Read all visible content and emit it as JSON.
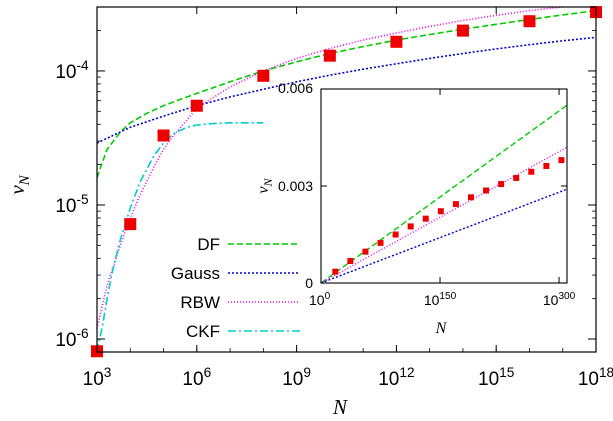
{
  "chart_data": [
    {
      "type": "line",
      "name": "main",
      "xlabel": "N",
      "ylabel": "ν",
      "ylabel_sub": "N",
      "xscale": "log",
      "yscale": "log",
      "xlim": [
        1000.0,
        1e+18
      ],
      "ylim": [
        8e-07,
        0.0003
      ],
      "xticks": [
        {
          "exp": 3,
          "label_base": "10",
          "label_exp": "3"
        },
        {
          "exp": 6,
          "label_base": "10",
          "label_exp": "6"
        },
        {
          "exp": 9,
          "label_base": "10",
          "label_exp": "9"
        },
        {
          "exp": 12,
          "label_base": "10",
          "label_exp": "12"
        },
        {
          "exp": 15,
          "label_base": "10",
          "label_exp": "15"
        },
        {
          "exp": 18,
          "label_base": "10",
          "label_exp": "18"
        }
      ],
      "yticks": [
        {
          "exp": -6,
          "label_base": "10",
          "label_exp": "-6"
        },
        {
          "exp": -5,
          "label_base": "10",
          "label_exp": "-5"
        },
        {
          "exp": -4,
          "label_base": "10",
          "label_exp": "-4"
        }
      ],
      "legend_position": "bottom-left",
      "series": [
        {
          "name": "DF",
          "color": "#00cc00",
          "dash": "6,3",
          "x": [
            1000.0,
            2000.0,
            5000.0,
            10000.0,
            30000.0,
            100000.0,
            300000.0,
            1000000.0,
            10000000.0,
            100000000.0,
            1000000000.0,
            10000000000.0,
            100000000000.0,
            1000000000000.0,
            10000000000000.0,
            100000000000000.0,
            1000000000000000.0,
            1e+16,
            1e+17,
            1e+18
          ],
          "y": [
            1.6e-05,
            2.6e-05,
            3.5e-05,
            4.1e-05,
            4.8e-05,
            5.5e-05,
            6.1e-05,
            6.8e-05,
            8.3e-05,
            0.0001,
            0.000117,
            0.000135,
            0.000152,
            0.00017,
            0.000187,
            0.000205,
            0.000223,
            0.000242,
            0.000262,
            0.000282
          ]
        },
        {
          "name": "Gauss",
          "color": "#0000cc",
          "dash": "2,2",
          "x": [
            1000.0,
            10000.0,
            100000.0,
            1000000.0,
            10000000.0,
            100000000.0,
            1000000000.0,
            10000000000.0,
            100000000000.0,
            1000000000000.0,
            10000000000000.0,
            100000000000000.0,
            1000000000000000.0,
            1e+16,
            1e+17,
            1e+18
          ],
          "y": [
            2.9e-05,
            3.8e-05,
            4.6e-05,
            5.5e-05,
            6.4e-05,
            7.3e-05,
            8.3e-05,
            9.3e-05,
            0.000103,
            0.000113,
            0.000124,
            0.000135,
            0.000146,
            0.000157,
            0.000168,
            0.000178
          ]
        },
        {
          "name": "RBW",
          "color": "#ee00ee",
          "dash": "1,2",
          "x": [
            1000.0,
            2000.0,
            5000.0,
            10000.0,
            20000.0,
            50000.0,
            100000.0,
            200000.0,
            500000.0,
            1000000.0,
            10000000.0,
            100000000.0,
            1000000000.0,
            10000000000.0,
            100000000000.0,
            1000000000000.0,
            10000000000000.0,
            100000000000000.0,
            1000000000000000.0,
            1e+16,
            1e+17
          ],
          "y": [
            1.2e-06,
            2.5e-06,
            5e-06,
            8e-06,
            1.2e-05,
            1.9e-05,
            2.6e-05,
            3.3e-05,
            4.3e-05,
            5.3e-05,
            7.6e-05,
            0.0001,
            0.000124,
            0.000147,
            0.00017,
            0.000192,
            0.000215,
            0.000238,
            0.00026,
            0.000282,
            0.0003
          ]
        },
        {
          "name": "CKF",
          "color": "#00cccc",
          "dash": "8,3,2,3",
          "x": [
            1000.0,
            1500.0,
            2000.0,
            3000.0,
            5000.0,
            10000.0,
            20000.0,
            50000.0,
            100000.0,
            200000.0,
            500000.0,
            1000000.0,
            3000000.0,
            10000000.0,
            100000000.0
          ],
          "y": [
            8e-07,
            1.3e-06,
            2e-06,
            3.3e-06,
            5.5e-06,
            9.5e-06,
            1.5e-05,
            2.3e-05,
            2.9e-05,
            3.4e-05,
            3.8e-05,
            3.95e-05,
            4.05e-05,
            4.1e-05,
            4.1e-05
          ]
        }
      ],
      "markers": {
        "name": "",
        "color": "#ee0000",
        "x": [
          1000.0,
          10000.0,
          100000.0,
          1000000.0,
          100000000.0,
          10000000000.0,
          1000000000000.0,
          100000000000000.0,
          1e+16,
          1e+18
        ],
        "y": [
          8.1e-07,
          7.2e-06,
          3.3e-05,
          5.5e-05,
          9.2e-05,
          0.00013,
          0.000165,
          0.0002,
          0.000235,
          0.000275
        ]
      }
    },
    {
      "type": "line",
      "name": "inset",
      "xlabel": "N",
      "ylabel": "ν",
      "ylabel_sub": "N",
      "xscale": "log",
      "xlim_exp": [
        0,
        310
      ],
      "ylim": [
        0,
        0.006
      ],
      "xticks": [
        {
          "exp": 0,
          "label_base": "10",
          "label_exp": "0"
        },
        {
          "exp": 150,
          "label_base": "10",
          "label_exp": "150"
        },
        {
          "exp": 300,
          "label_base": "10",
          "label_exp": "300"
        }
      ],
      "yticks": [
        {
          "value": 0,
          "label": "0"
        },
        {
          "value": 0.003,
          "label": "0.003"
        },
        {
          "value": 0.006,
          "label": "0.006"
        }
      ],
      "series": [
        {
          "name": "DF",
          "color": "#00cc00",
          "dash": "6,3",
          "x_exp": [
            0,
            310
          ],
          "y": [
            0,
            0.0055
          ]
        },
        {
          "name": "Gauss",
          "color": "#0000cc",
          "dash": "2,2",
          "x_exp": [
            0,
            310
          ],
          "y": [
            0,
            0.0029
          ]
        },
        {
          "name": "RBW",
          "color": "#ee00ee",
          "dash": "1,2",
          "x_exp": [
            0,
            310
          ],
          "y": [
            0,
            0.0042
          ]
        }
      ],
      "markers": {
        "name": "",
        "color": "#ee0000",
        "x_exp": [
          18,
          37,
          56,
          75,
          94,
          113,
          132,
          151,
          170,
          189,
          208,
          227,
          246,
          265,
          284,
          303
        ],
        "y": [
          0.00035,
          0.00068,
          0.00097,
          0.00124,
          0.0015,
          0.00175,
          0.00199,
          0.00222,
          0.00244,
          0.00265,
          0.00286,
          0.00306,
          0.00325,
          0.00344,
          0.00362,
          0.0038
        ]
      }
    }
  ]
}
